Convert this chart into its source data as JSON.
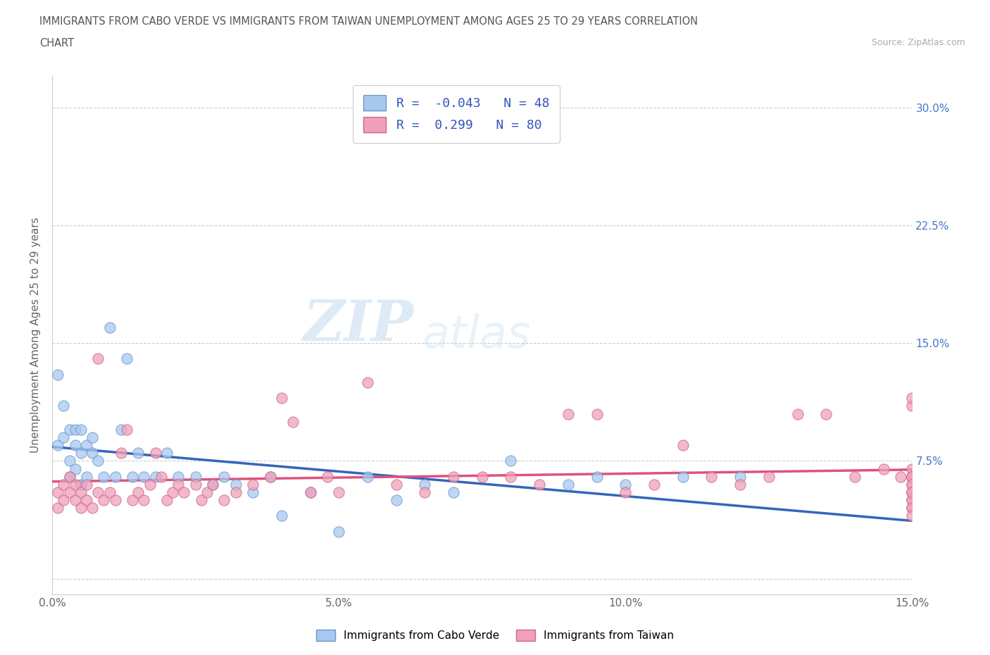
{
  "title_line1": "IMMIGRANTS FROM CABO VERDE VS IMMIGRANTS FROM TAIWAN UNEMPLOYMENT AMONG AGES 25 TO 29 YEARS CORRELATION",
  "title_line2": "CHART",
  "source": "Source: ZipAtlas.com",
  "ylabel": "Unemployment Among Ages 25 to 29 years",
  "xlim": [
    0.0,
    0.15
  ],
  "ylim": [
    -0.01,
    0.32
  ],
  "xticks": [
    0.0,
    0.05,
    0.1,
    0.15
  ],
  "xtick_labels": [
    "0.0%",
    "5.0%",
    "10.0%",
    "15.0%"
  ],
  "yticks": [
    0.0,
    0.075,
    0.15,
    0.225,
    0.3
  ],
  "ytick_labels": [
    "",
    "7.5%",
    "15.0%",
    "22.5%",
    "30.0%"
  ],
  "cabo_verde_color": "#a8c8f0",
  "cabo_verde_edge": "#6699cc",
  "taiwan_color": "#f0a0b8",
  "taiwan_edge": "#cc6688",
  "cabo_verde_line_color": "#3366bb",
  "taiwan_line_color": "#e05080",
  "cabo_verde_R": -0.043,
  "cabo_verde_N": 48,
  "taiwan_R": 0.299,
  "taiwan_N": 80,
  "watermark_zip": "ZIP",
  "watermark_atlas": "atlas",
  "background_color": "#ffffff",
  "grid_color": "#cccccc",
  "right_ytick_color": "#4477cc",
  "legend_text_color": "#3355bb",
  "cabo_verde_x": [
    0.001,
    0.001,
    0.002,
    0.002,
    0.003,
    0.003,
    0.003,
    0.004,
    0.004,
    0.004,
    0.005,
    0.005,
    0.005,
    0.006,
    0.006,
    0.007,
    0.007,
    0.008,
    0.009,
    0.01,
    0.011,
    0.012,
    0.013,
    0.014,
    0.015,
    0.016,
    0.018,
    0.02,
    0.022,
    0.025,
    0.028,
    0.03,
    0.032,
    0.035,
    0.038,
    0.04,
    0.045,
    0.05,
    0.055,
    0.06,
    0.065,
    0.07,
    0.08,
    0.09,
    0.095,
    0.1,
    0.11,
    0.12
  ],
  "cabo_verde_y": [
    0.13,
    0.085,
    0.11,
    0.09,
    0.075,
    0.095,
    0.065,
    0.085,
    0.095,
    0.07,
    0.08,
    0.095,
    0.06,
    0.085,
    0.065,
    0.08,
    0.09,
    0.075,
    0.065,
    0.16,
    0.065,
    0.095,
    0.14,
    0.065,
    0.08,
    0.065,
    0.065,
    0.08,
    0.065,
    0.065,
    0.06,
    0.065,
    0.06,
    0.055,
    0.065,
    0.04,
    0.055,
    0.03,
    0.065,
    0.05,
    0.06,
    0.055,
    0.075,
    0.06,
    0.065,
    0.06,
    0.065,
    0.065
  ],
  "taiwan_x": [
    0.001,
    0.001,
    0.002,
    0.002,
    0.003,
    0.003,
    0.004,
    0.004,
    0.005,
    0.005,
    0.006,
    0.006,
    0.007,
    0.008,
    0.008,
    0.009,
    0.01,
    0.011,
    0.012,
    0.013,
    0.014,
    0.015,
    0.016,
    0.017,
    0.018,
    0.019,
    0.02,
    0.021,
    0.022,
    0.023,
    0.025,
    0.026,
    0.027,
    0.028,
    0.03,
    0.032,
    0.035,
    0.038,
    0.04,
    0.042,
    0.045,
    0.048,
    0.05,
    0.055,
    0.06,
    0.065,
    0.07,
    0.075,
    0.08,
    0.085,
    0.09,
    0.095,
    0.1,
    0.105,
    0.11,
    0.115,
    0.12,
    0.125,
    0.13,
    0.135,
    0.14,
    0.145,
    0.148,
    0.15,
    0.15,
    0.15,
    0.15,
    0.15,
    0.15,
    0.15,
    0.15,
    0.15,
    0.15,
    0.15,
    0.15,
    0.15,
    0.15,
    0.15,
    0.15,
    0.15
  ],
  "taiwan_y": [
    0.045,
    0.055,
    0.05,
    0.06,
    0.055,
    0.065,
    0.05,
    0.06,
    0.045,
    0.055,
    0.05,
    0.06,
    0.045,
    0.055,
    0.14,
    0.05,
    0.055,
    0.05,
    0.08,
    0.095,
    0.05,
    0.055,
    0.05,
    0.06,
    0.08,
    0.065,
    0.05,
    0.055,
    0.06,
    0.055,
    0.06,
    0.05,
    0.055,
    0.06,
    0.05,
    0.055,
    0.06,
    0.065,
    0.115,
    0.1,
    0.055,
    0.065,
    0.055,
    0.125,
    0.06,
    0.055,
    0.065,
    0.065,
    0.065,
    0.06,
    0.105,
    0.105,
    0.055,
    0.06,
    0.085,
    0.065,
    0.06,
    0.065,
    0.105,
    0.105,
    0.065,
    0.07,
    0.065,
    0.065,
    0.065,
    0.07,
    0.065,
    0.06,
    0.065,
    0.055,
    0.05,
    0.045,
    0.11,
    0.115,
    0.06,
    0.055,
    0.05,
    0.055,
    0.045,
    0.04
  ]
}
